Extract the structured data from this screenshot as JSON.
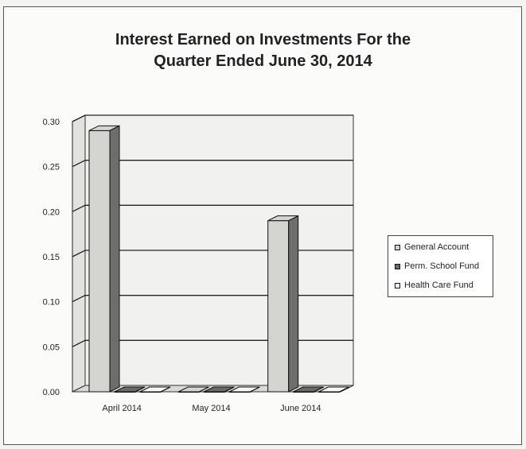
{
  "chart_data": {
    "type": "bar",
    "title_line1": "Interest Earned on Investments For the",
    "title_line2": "Quarter Ended June 30, 2014",
    "categories": [
      "April 2014",
      "May 2014",
      "June 2014"
    ],
    "series": [
      {
        "name": "General Account",
        "values": [
          0.29,
          0.0,
          0.19
        ],
        "color": "#d4d4d0"
      },
      {
        "name": "Perm. School Fund",
        "values": [
          0.0,
          0.0,
          0.0
        ],
        "color": "#6a6a68"
      },
      {
        "name": "Health Care Fund",
        "values": [
          0.0,
          0.0,
          0.0
        ],
        "color": "#f7f7f5"
      }
    ],
    "yticks": [
      "0.00",
      "0.05",
      "0.10",
      "0.15",
      "0.20",
      "0.25",
      "0.30"
    ],
    "ylim": [
      0,
      0.3
    ],
    "grid": true,
    "legend_position": "right",
    "style": "3d-column"
  }
}
